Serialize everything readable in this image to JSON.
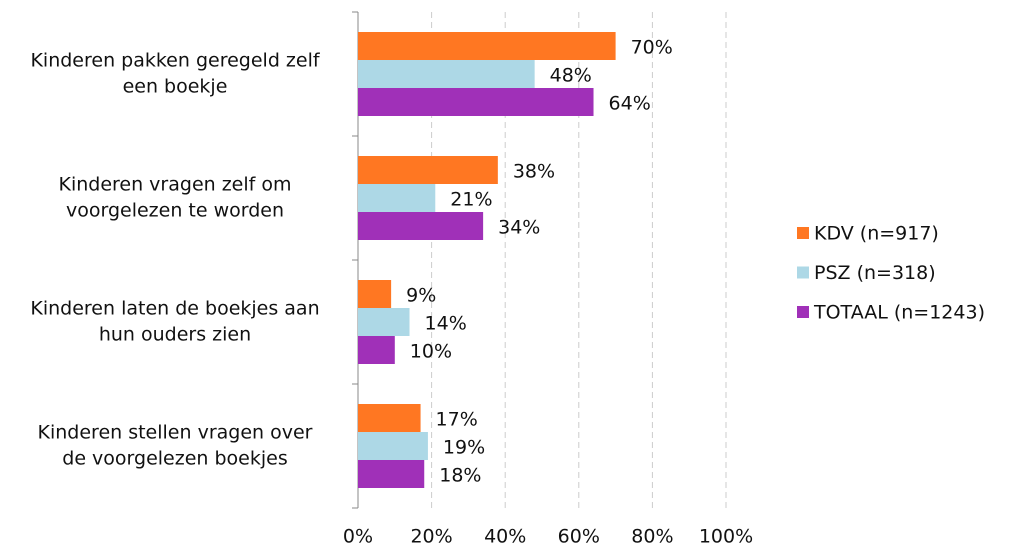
{
  "chart_data": {
    "type": "bar",
    "orientation": "horizontal",
    "categories": [
      [
        "Kinderen pakken geregeld zelf",
        "een boekje"
      ],
      [
        "Kinderen vragen zelf om",
        "voorgelezen te worden"
      ],
      [
        "Kinderen laten de boekjes aan",
        "hun ouders zien"
      ],
      [
        "Kinderen stellen vragen over",
        "de voorgelezen boekjes"
      ]
    ],
    "series": [
      {
        "name": "KDV (n=917)",
        "color": "#ff7722",
        "values": [
          70,
          38,
          9,
          17
        ],
        "value_labels": [
          "70%",
          "38%",
          "9%",
          "17%"
        ]
      },
      {
        "name": "PSZ (n=318)",
        "color": "#add8e6",
        "values": [
          48,
          21,
          14,
          19
        ],
        "value_labels": [
          "48%",
          "21%",
          "14%",
          "19%"
        ]
      },
      {
        "name": "TOTAAL (n=1243)",
        "color": "#a030b8",
        "values": [
          64,
          34,
          10,
          18
        ],
        "value_labels": [
          "64%",
          "34%",
          "10%",
          "18%"
        ]
      }
    ],
    "xlim": [
      0,
      100
    ],
    "xticks": [
      {
        "value": 0,
        "label": "0%"
      },
      {
        "value": 20,
        "label": "20%"
      },
      {
        "value": 40,
        "label": "40%"
      },
      {
        "value": 60,
        "label": "60%"
      },
      {
        "value": 80,
        "label": "80%"
      },
      {
        "value": 100,
        "label": "100%"
      }
    ],
    "grid": true,
    "legend": "right"
  }
}
